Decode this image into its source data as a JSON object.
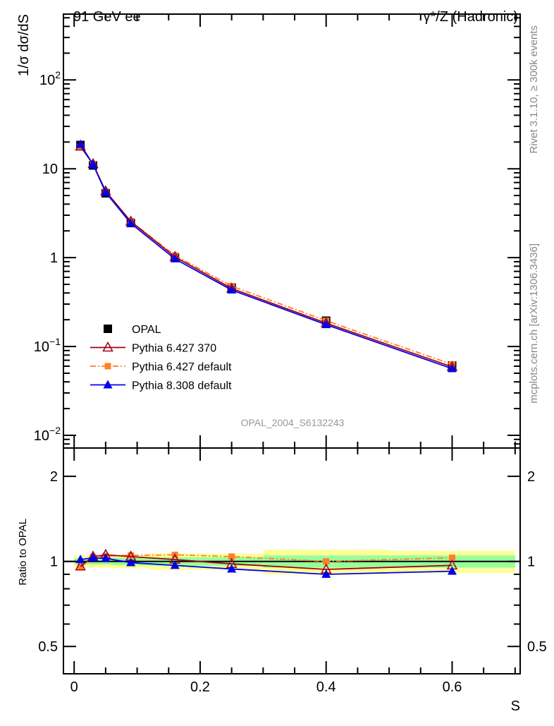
{
  "chart_data": {
    "type": "line",
    "title_left": "91 GeV ee",
    "title_right": "γ*/Z (Hadronic)",
    "ylabel": "1/σ dσ/dS",
    "xlabel": "S",
    "ratio_ylabel": "Ratio to OPAL",
    "side_text_top": "Rivet 3.1.10, ≥ 300k events",
    "side_text_bottom": "mcplots.cern.ch [arXiv:1306.3436]",
    "analysis_id": "OPAL_2004_S6132243",
    "xlim": [
      -0.017,
      0.708
    ],
    "ylim_log": [
      0.0072,
      550
    ],
    "ratio_ylim_log": [
      0.4,
      2.52
    ],
    "x_ticks": [
      {
        "v": 0,
        "label": "0"
      },
      {
        "v": 0.2,
        "label": "0.2"
      },
      {
        "v": 0.4,
        "label": "0.4"
      },
      {
        "v": 0.6,
        "label": "0.6"
      }
    ],
    "y_ticks": [
      {
        "v": 0.01,
        "base": "10",
        "exp": "−2"
      },
      {
        "v": 0.1,
        "base": "10",
        "exp": "−1"
      },
      {
        "v": 1,
        "base": "1",
        "exp": ""
      },
      {
        "v": 10,
        "base": "10",
        "exp": ""
      },
      {
        "v": 100,
        "base": "10",
        "exp": "2"
      }
    ],
    "ratio_ticks": [
      {
        "v": 0.5,
        "label": "0.5"
      },
      {
        "v": 1,
        "label": "1"
      },
      {
        "v": 2,
        "label": "2"
      }
    ],
    "x": [
      0.01,
      0.03,
      0.05,
      0.09,
      0.16,
      0.25,
      0.4,
      0.6
    ],
    "bins": [
      [
        0,
        0.02
      ],
      [
        0.02,
        0.04
      ],
      [
        0.04,
        0.06
      ],
      [
        0.06,
        0.12
      ],
      [
        0.12,
        0.2
      ],
      [
        0.2,
        0.3
      ],
      [
        0.3,
        0.5
      ],
      [
        0.5,
        0.7
      ]
    ],
    "band_stat_rel": [
      0.025,
      0.025,
      0.025,
      0.03,
      0.035,
      0.035,
      0.05,
      0.05
    ],
    "band_total_rel": [
      0.05,
      0.05,
      0.05,
      0.055,
      0.067,
      0.065,
      0.1,
      0.09
    ],
    "colors": {
      "band_total": "#ffff99",
      "band_stat": "#99ff99",
      "OPAL": "#000000",
      "p6_370": "#a00018",
      "p6_def": "#ff7f2a",
      "p8": "#0000ee"
    },
    "series": [
      {
        "name": "OPAL",
        "key": "OPAL",
        "marker": "square",
        "values": [
          18.5,
          10.9,
          5.3,
          2.45,
          1.0,
          0.46,
          0.195,
          0.061
        ]
      },
      {
        "name": "Pythia 6.427 370",
        "key": "p6_370",
        "marker": "open-triangle",
        "line": "solid",
        "values": [
          17.8,
          11.3,
          5.6,
          2.55,
          1.02,
          0.45,
          0.183,
          0.059
        ],
        "ratio": [
          0.96,
          1.04,
          1.055,
          1.04,
          1.015,
          0.98,
          0.937,
          0.968
        ]
      },
      {
        "name": "Pythia 6.427 default",
        "key": "p6_def",
        "marker": "small-square",
        "line": "dashdot",
        "values": [
          17.6,
          11.3,
          5.54,
          2.57,
          1.055,
          0.478,
          0.195,
          0.063
        ],
        "ratio": [
          0.953,
          1.035,
          1.045,
          1.05,
          1.055,
          1.04,
          1.0,
          1.03
        ]
      },
      {
        "name": "Pythia 8.308 default",
        "key": "p8",
        "marker": "triangle",
        "line": "solid",
        "values": [
          18.8,
          11.2,
          5.43,
          2.43,
          0.968,
          0.432,
          0.176,
          0.0563
        ],
        "ratio": [
          1.015,
          1.03,
          1.025,
          0.99,
          0.968,
          0.94,
          0.9,
          0.923
        ]
      }
    ]
  }
}
